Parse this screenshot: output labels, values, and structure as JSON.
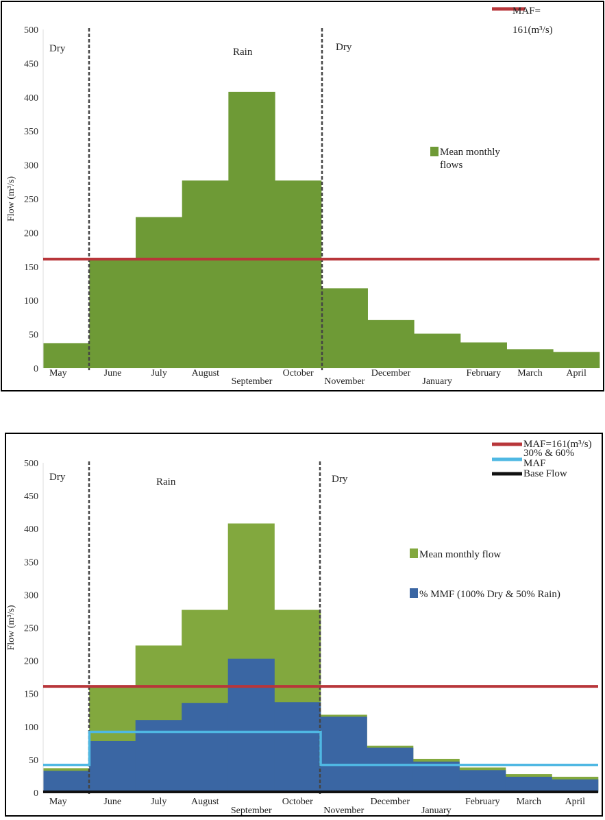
{
  "chart_data": [
    {
      "type": "bar",
      "ylabel": "Flow (m³/s)",
      "ylim": [
        0,
        500
      ],
      "yticks": [
        "0",
        "50",
        "100",
        "150",
        "200",
        "250",
        "300",
        "350",
        "400",
        "450",
        "500"
      ],
      "categories": [
        "May",
        "June",
        "July",
        "August",
        "September",
        "October",
        "November",
        "December",
        "January",
        "February",
        "March",
        "April"
      ],
      "season_labels": [
        "Dry",
        "Rain",
        "Dry"
      ],
      "series": [
        {
          "name": "Mean monthly flows",
          "type": "step-bar",
          "color": "#6e9a36",
          "values": [
            37,
            161,
            223,
            277,
            408,
            277,
            118,
            71,
            51,
            38,
            28,
            24
          ]
        }
      ],
      "lines": [
        {
          "name": "MAF= 161(m³/s)",
          "legend_lines": [
            "MAF=",
            "161(m³/s)"
          ],
          "color": "#b8363a",
          "value": 161
        }
      ],
      "legend": "right",
      "grid": false
    },
    {
      "type": "bar",
      "ylabel": "Flow (m³/s)",
      "ylim": [
        0,
        500
      ],
      "yticks": [
        "0",
        "50",
        "100",
        "150",
        "200",
        "250",
        "300",
        "350",
        "400",
        "450",
        "500"
      ],
      "categories": [
        "May",
        "June",
        "July",
        "August",
        "September",
        "October",
        "November",
        "December",
        "January",
        "February",
        "March",
        "April"
      ],
      "season_labels": [
        "Dry",
        "Rain",
        "Dry"
      ],
      "series": [
        {
          "name": "Mean monthly flow",
          "type": "step-bar",
          "color": "#82a83e",
          "values": [
            37,
            161,
            223,
            277,
            408,
            277,
            118,
            71,
            51,
            38,
            28,
            24
          ]
        },
        {
          "name": "% MMF (100% Dry & 50% Rain)",
          "type": "step-bar",
          "color": "#3a66a3",
          "values": [
            33,
            78,
            110,
            136,
            203,
            137,
            115,
            68,
            47,
            34,
            24,
            20
          ]
        }
      ],
      "lines": [
        {
          "name": "MAF=161(m³/s)",
          "legend_lines": [
            "MAF=161(m³/s)"
          ],
          "color": "#b8363a",
          "values": [
            161,
            161,
            161,
            161,
            161,
            161,
            161,
            161,
            161,
            161,
            161,
            161
          ]
        },
        {
          "name": "30% & 60% MAF",
          "legend_lines": [
            "30% & 60%",
            "MAF"
          ],
          "color": "#4fb8e3",
          "values": [
            42,
            92,
            92,
            92,
            92,
            92,
            42,
            42,
            42,
            42,
            42,
            42
          ]
        },
        {
          "name": "Base Flow",
          "legend_lines": [
            "Base Flow"
          ],
          "color": "#111111",
          "values": [
            1,
            1,
            1,
            1,
            1,
            1,
            1,
            1,
            1,
            1,
            1,
            1
          ]
        }
      ],
      "legend": "right",
      "grid": false
    }
  ]
}
